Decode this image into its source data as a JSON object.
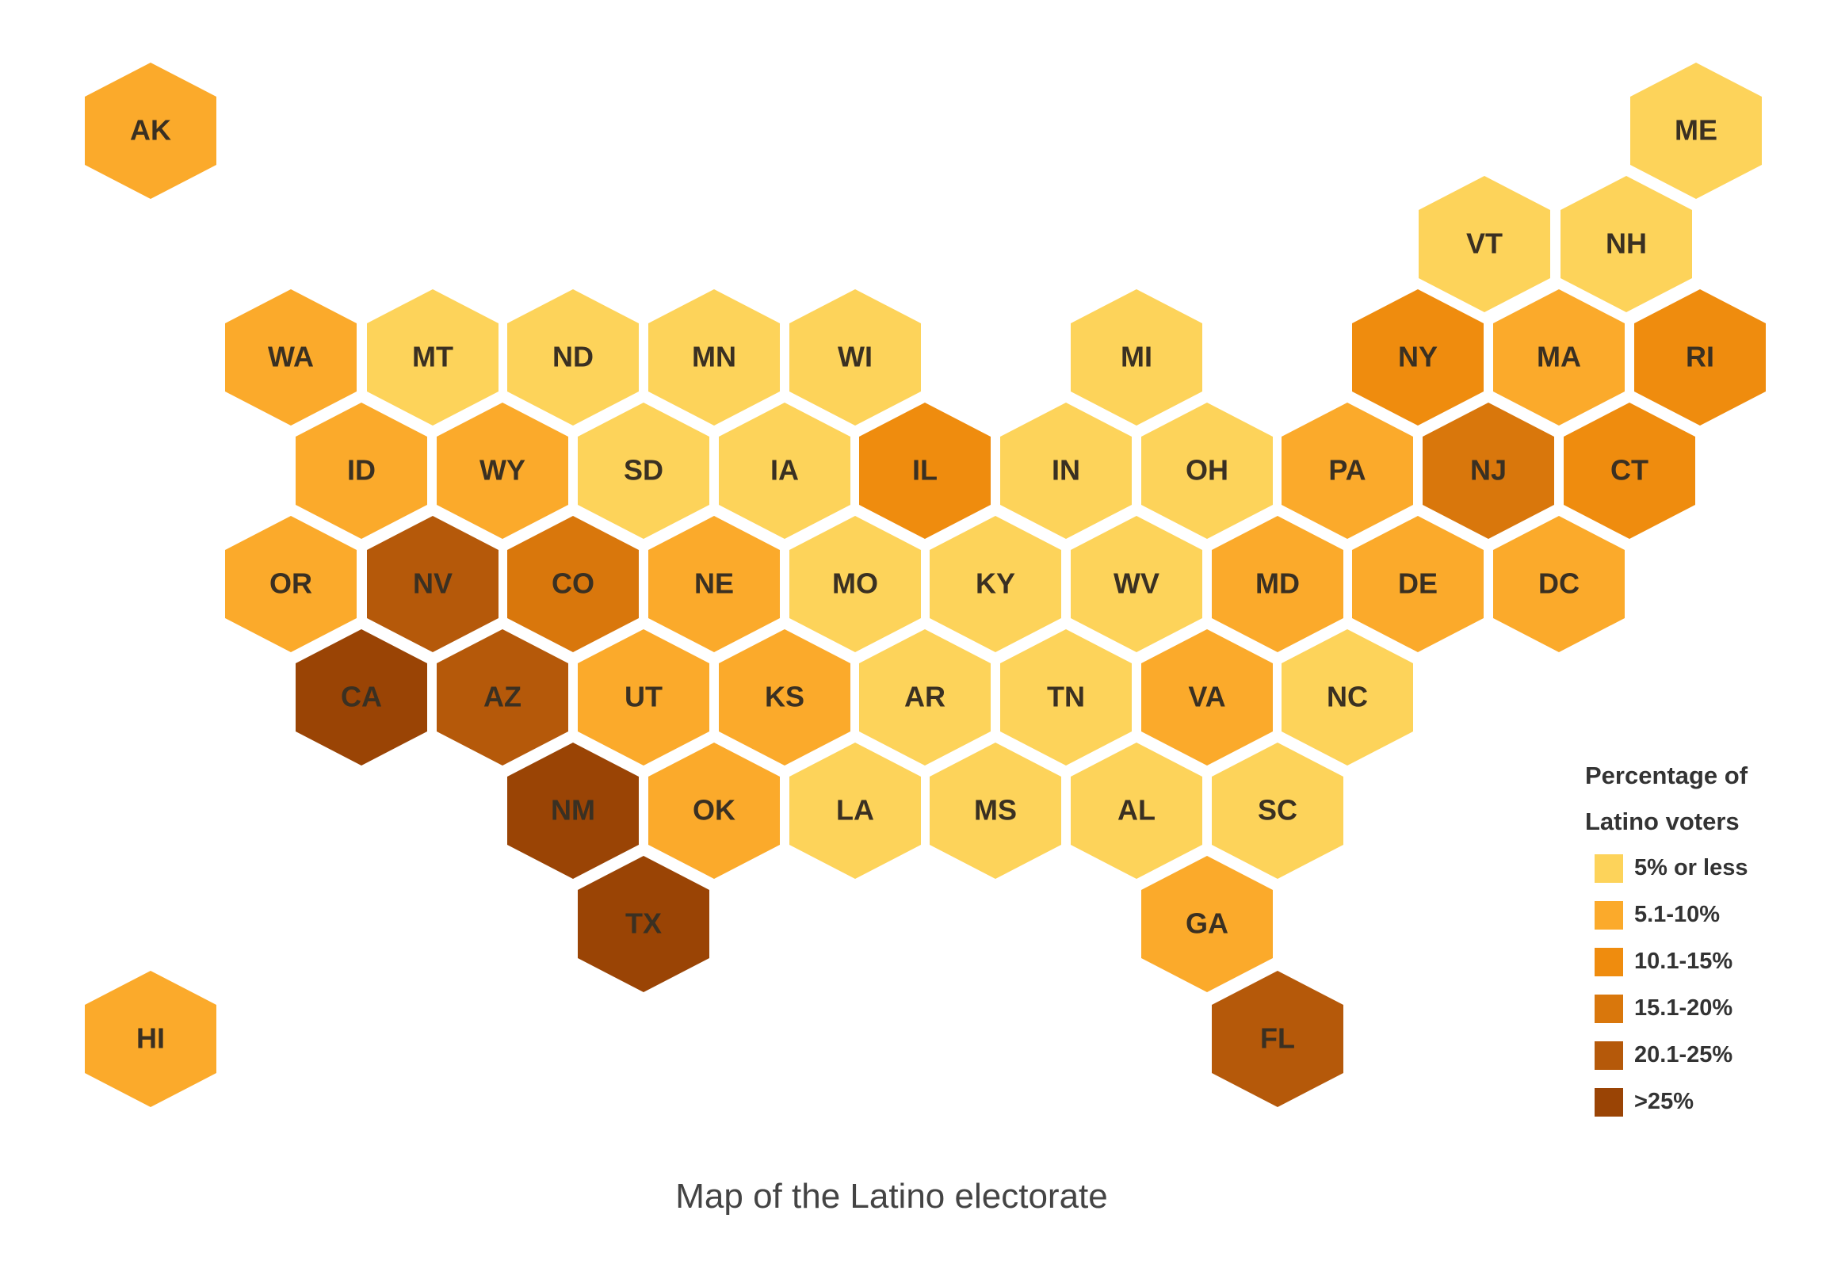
{
  "caption": "Map of the Latino electorate",
  "legend": {
    "title_line1": "Percentage of",
    "title_line2": "Latino voters",
    "items": [
      {
        "label": "5% or less",
        "color": "#FDD35A"
      },
      {
        "label": "5.1-10%",
        "color": "#FBAA2B"
      },
      {
        "label": "10.1-15%",
        "color": "#EF8C0E"
      },
      {
        "label": "15.1-20%",
        "color": "#D9770C"
      },
      {
        "label": "20.1-25%",
        "color": "#B5590A"
      },
      {
        "label": ">25%",
        "color": "#9A4405"
      }
    ]
  },
  "states": [
    {
      "abbr": "AK",
      "category": 1
    },
    {
      "abbr": "ME",
      "category": 0
    },
    {
      "abbr": "VT",
      "category": 0
    },
    {
      "abbr": "NH",
      "category": 0
    },
    {
      "abbr": "WA",
      "category": 1
    },
    {
      "abbr": "MT",
      "category": 0
    },
    {
      "abbr": "ND",
      "category": 0
    },
    {
      "abbr": "MN",
      "category": 0
    },
    {
      "abbr": "WI",
      "category": 0
    },
    {
      "abbr": "MI",
      "category": 0
    },
    {
      "abbr": "NY",
      "category": 2
    },
    {
      "abbr": "MA",
      "category": 1
    },
    {
      "abbr": "RI",
      "category": 2
    },
    {
      "abbr": "ID",
      "category": 1
    },
    {
      "abbr": "WY",
      "category": 1
    },
    {
      "abbr": "SD",
      "category": 0
    },
    {
      "abbr": "IA",
      "category": 0
    },
    {
      "abbr": "IL",
      "category": 2
    },
    {
      "abbr": "IN",
      "category": 0
    },
    {
      "abbr": "OH",
      "category": 0
    },
    {
      "abbr": "PA",
      "category": 1
    },
    {
      "abbr": "NJ",
      "category": 3
    },
    {
      "abbr": "CT",
      "category": 2
    },
    {
      "abbr": "OR",
      "category": 1
    },
    {
      "abbr": "NV",
      "category": 4
    },
    {
      "abbr": "CO",
      "category": 3
    },
    {
      "abbr": "NE",
      "category": 1
    },
    {
      "abbr": "MO",
      "category": 0
    },
    {
      "abbr": "KY",
      "category": 0
    },
    {
      "abbr": "WV",
      "category": 0
    },
    {
      "abbr": "MD",
      "category": 1
    },
    {
      "abbr": "DE",
      "category": 1
    },
    {
      "abbr": "DC",
      "category": 1
    },
    {
      "abbr": "CA",
      "category": 5
    },
    {
      "abbr": "AZ",
      "category": 4
    },
    {
      "abbr": "UT",
      "category": 1
    },
    {
      "abbr": "KS",
      "category": 1
    },
    {
      "abbr": "AR",
      "category": 0
    },
    {
      "abbr": "TN",
      "category": 0
    },
    {
      "abbr": "VA",
      "category": 1
    },
    {
      "abbr": "NC",
      "category": 0
    },
    {
      "abbr": "NM",
      "category": 5
    },
    {
      "abbr": "OK",
      "category": 1
    },
    {
      "abbr": "LA",
      "category": 0
    },
    {
      "abbr": "MS",
      "category": 0
    },
    {
      "abbr": "AL",
      "category": 0
    },
    {
      "abbr": "SC",
      "category": 0
    },
    {
      "abbr": "TX",
      "category": 5
    },
    {
      "abbr": "GA",
      "category": 1
    },
    {
      "abbr": "HI",
      "category": 1
    },
    {
      "abbr": "FL",
      "category": 4
    }
  ]
}
